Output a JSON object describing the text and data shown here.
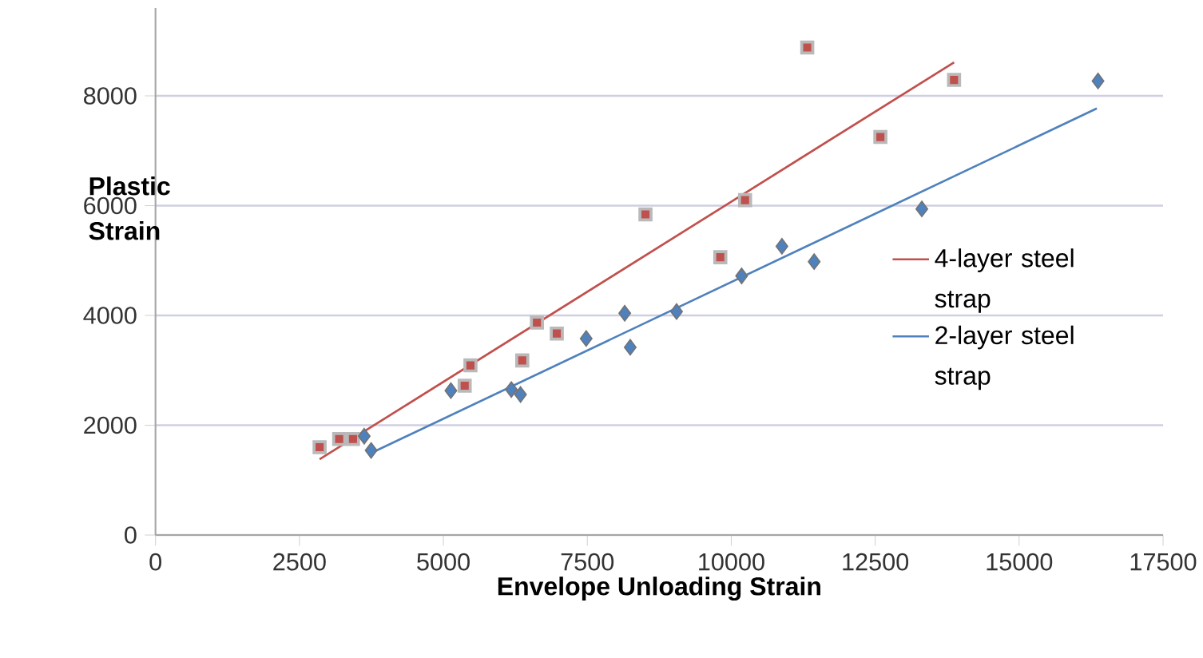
{
  "chart_data": {
    "type": "scatter",
    "xlabel": "Envelope Unloading Strain",
    "ylabel": "Plastic Strain",
    "xlim": [
      0,
      17500
    ],
    "ylim": [
      0,
      9600
    ],
    "xticks": [
      0,
      2500,
      5000,
      7500,
      10000,
      12500,
      15000,
      17500
    ],
    "yticks": [
      0,
      2000,
      4000,
      6000,
      8000
    ],
    "grid": "y",
    "legend": "right",
    "series": [
      {
        "type": "scatter",
        "marker": "square",
        "color": "#c0504d",
        "x": [
          2850,
          3190,
          3430,
          5370,
          5470,
          6370,
          6625,
          6970,
          8510,
          9810,
          10240,
          11320,
          12590,
          13870
        ],
        "values": [
          1600,
          1750,
          1750,
          2720,
          3090,
          3180,
          3870,
          3670,
          5840,
          5060,
          6100,
          8880,
          7250,
          8290
        ]
      },
      {
        "type": "scatter",
        "marker": "diamond",
        "color": "#4f81bd",
        "x": [
          3625,
          3745,
          5130,
          6180,
          6340,
          7480,
          8150,
          8245,
          9050,
          10180,
          10880,
          11440,
          13310,
          16370
        ],
        "values": [
          1800,
          1540,
          2630,
          2650,
          2560,
          3580,
          4040,
          3420,
          4070,
          4720,
          5260,
          4980,
          5940,
          8270
        ]
      },
      {
        "type": "line",
        "marker": "none",
        "name": "4-layer steel strap",
        "color": "#c0504d",
        "x": [
          2850,
          13870
        ],
        "values": [
          1380,
          8610
        ]
      },
      {
        "type": "line",
        "marker": "none",
        "name": "2-layer steel strap",
        "color": "#4f81bd",
        "x": [
          3740,
          16350
        ],
        "values": [
          1490,
          7770
        ]
      }
    ]
  }
}
